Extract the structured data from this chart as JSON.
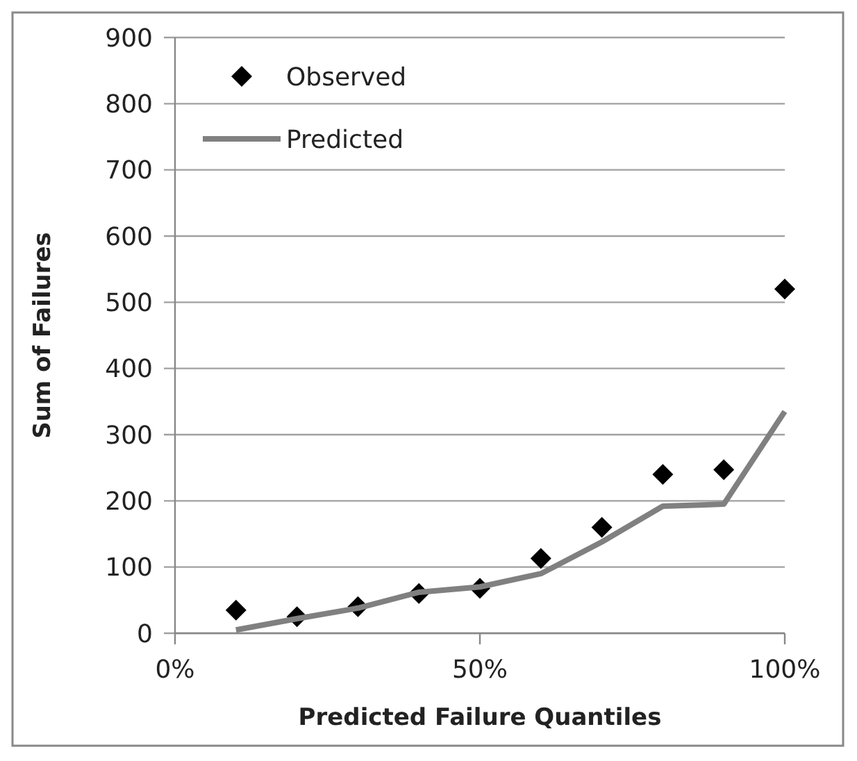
{
  "chart_data": {
    "type": "scatter",
    "xlabel": "Predicted Failure Quantiles",
    "ylabel": "Sum of Failures",
    "x": [
      10,
      20,
      30,
      40,
      50,
      60,
      70,
      80,
      90,
      100
    ],
    "series": [
      {
        "name": "Observed",
        "color": "#000000",
        "marker": "diamond",
        "values": [
          35,
          25,
          40,
          60,
          68,
          113,
          160,
          240,
          247,
          520
        ]
      },
      {
        "name": "Predicted",
        "type": "line",
        "color": "#808080",
        "marker": "none",
        "line_style": "solid",
        "values": [
          5,
          22,
          38,
          62,
          70,
          90,
          138,
          192,
          195,
          335
        ]
      }
    ],
    "xlim": [
      0,
      100
    ],
    "xticks": [
      {
        "value": 0,
        "label": "0%"
      },
      {
        "value": 50,
        "label": "50%"
      },
      {
        "value": 100,
        "label": "100%"
      }
    ],
    "ylim": [
      0,
      900
    ],
    "yticks": [
      0,
      100,
      200,
      300,
      400,
      500,
      600,
      700,
      800,
      900
    ],
    "grid": "y",
    "legend": "top left"
  }
}
